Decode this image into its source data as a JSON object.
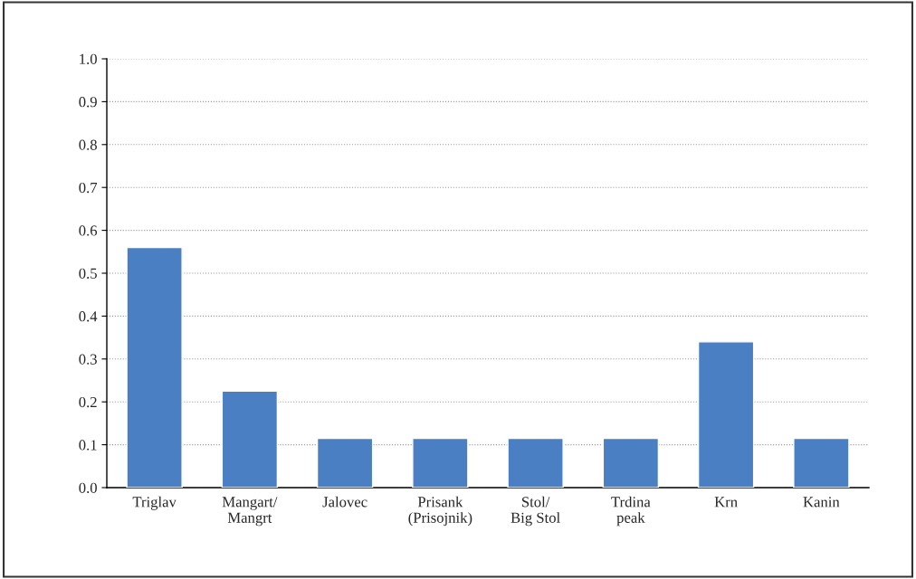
{
  "chart_data": {
    "type": "bar",
    "categories": [
      "Triglav",
      "Mangart/\nMangrt",
      "Jalovec",
      "Prisank\n(Prisojnik)",
      "Stol/\nBig Stol",
      "Trdina\npeak",
      "Krn",
      "Kanin"
    ],
    "values": [
      0.56,
      0.225,
      0.115,
      0.115,
      0.115,
      0.115,
      0.34,
      0.115
    ],
    "color": "#4a7fc4",
    "ylim": [
      0,
      1.0
    ],
    "yticks": [
      {
        "value": 0,
        "label": "0.0"
      },
      {
        "value": 0.1,
        "label": "0.1"
      },
      {
        "value": 0.2,
        "label": "0.2"
      },
      {
        "value": 0.3,
        "label": "0.3"
      },
      {
        "value": 0.4,
        "label": "0.4"
      },
      {
        "value": 0.5,
        "label": "0.5"
      },
      {
        "value": 0.6,
        "label": "0.6"
      },
      {
        "value": 0.7,
        "label": "0.7"
      },
      {
        "value": 0.8,
        "label": "0.8"
      },
      {
        "value": 0.9,
        "label": "0.9"
      },
      {
        "value": 1.0,
        "label": "1.0"
      }
    ],
    "grid": "y"
  }
}
